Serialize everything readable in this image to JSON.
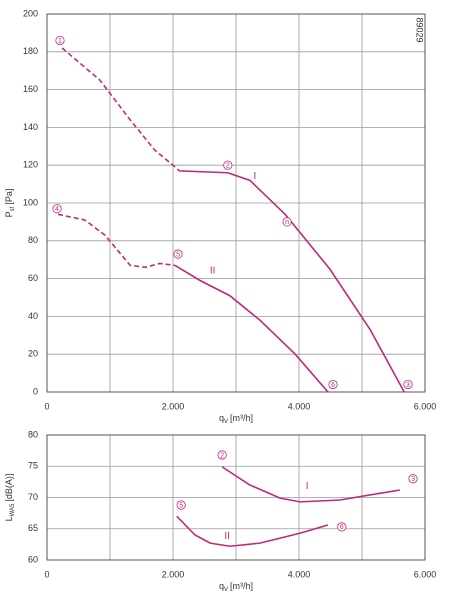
{
  "chart_data": [
    {
      "type": "line",
      "code": "89029",
      "ylabel": {
        "main": "P",
        "sub": "sf",
        "unit": "[Pa]"
      },
      "xlabel": {
        "main": "q",
        "sub": "V",
        "unit": "[m³/h]"
      },
      "xlim": [
        0,
        6000
      ],
      "ylim": [
        0,
        200
      ],
      "xticks": [
        0,
        {
          "value": 2000,
          "label": "2.000"
        },
        {
          "value": 4000,
          "label": "4.000"
        },
        {
          "value": 6000,
          "label": "6.000"
        }
      ],
      "x_minor_grid": [
        1000,
        3000,
        5000
      ],
      "yticks": [
        0,
        20,
        40,
        60,
        80,
        100,
        120,
        140,
        160,
        180,
        200
      ],
      "grid": true,
      "series": [
        {
          "color": "#c2287a",
          "line_style": "dashed",
          "x": [
            240,
            840,
            1320,
            1710,
            2000,
            2100
          ],
          "values": [
            182,
            165,
            144,
            128,
            120,
            117
          ]
        },
        {
          "color": "#c2287a",
          "line_style": "solid",
          "x": [
            2100,
            2870,
            3220,
            3780,
            4490,
            5130,
            5670
          ],
          "values": [
            117,
            116,
            112,
            94,
            65,
            33,
            0
          ]
        },
        {
          "color": "#c2287a",
          "line_style": "dashed",
          "x": [
            175,
            600,
            920,
            1320,
            1560,
            1790,
            2030
          ],
          "values": [
            94,
            91,
            83,
            67,
            66,
            68,
            67
          ]
        },
        {
          "color": "#c2287a",
          "line_style": "solid",
          "x": [
            2030,
            2430,
            2900,
            3380,
            3940,
            4460
          ],
          "values": [
            67,
            59,
            51,
            38,
            20,
            0
          ]
        }
      ],
      "points": [
        {
          "label": "1",
          "x": 206,
          "y": 186
        },
        {
          "label": "2",
          "x": 2870,
          "y": 120
        },
        {
          "label": "3",
          "x": 5730,
          "y": 4
        },
        {
          "label": "4",
          "x": 160,
          "y": 97
        },
        {
          "label": "5",
          "x": 2080,
          "y": 73
        },
        {
          "label": "6",
          "x": 4540,
          "y": 4
        },
        {
          "label": "n",
          "x": 3810,
          "y": 90
        }
      ],
      "curve_labels": [
        {
          "text": "I",
          "x": 3300,
          "y": 114
        },
        {
          "text": "II",
          "x": 2630,
          "y": 64
        }
      ]
    },
    {
      "type": "line",
      "ylabel": {
        "main": "L",
        "sub": "WA5",
        "unit": "[dB(A)]"
      },
      "xlabel": {
        "main": "q",
        "sub": "V",
        "unit": "[m³/h]"
      },
      "xlim": [
        0,
        6000
      ],
      "ylim": [
        60,
        80
      ],
      "xticks": [
        0,
        {
          "value": 2000,
          "label": "2.000"
        },
        {
          "value": 4000,
          "label": "4.000"
        },
        {
          "value": 6000,
          "label": "6.000"
        }
      ],
      "x_minor_grid": [
        1000,
        3000,
        5000
      ],
      "yticks": [
        60,
        65,
        70,
        75,
        80
      ],
      "grid": true,
      "series": [
        {
          "color": "#c2287a",
          "line_style": "solid",
          "x": [
            2780,
            3220,
            3700,
            4020,
            4650,
            5600
          ],
          "values": [
            74.9,
            72,
            69.9,
            69.3,
            69.6,
            71.2
          ]
        },
        {
          "color": "#c2287a",
          "line_style": "solid",
          "x": [
            2060,
            2350,
            2590,
            2900,
            3380,
            4020,
            4460
          ],
          "values": [
            67,
            64,
            62.7,
            62.2,
            62.7,
            64.3,
            65.6
          ]
        }
      ],
      "points": [
        {
          "label": "2",
          "x": 2780,
          "y": 76.8
        },
        {
          "label": "3",
          "x": 5810,
          "y": 73
        },
        {
          "label": "5",
          "x": 2130,
          "y": 68.8
        },
        {
          "label": "6",
          "x": 4680,
          "y": 65.3
        }
      ],
      "curve_labels": [
        {
          "text": "I",
          "x": 4130,
          "y": 71.8
        },
        {
          "text": "II",
          "x": 2860,
          "y": 63.8
        }
      ]
    }
  ]
}
